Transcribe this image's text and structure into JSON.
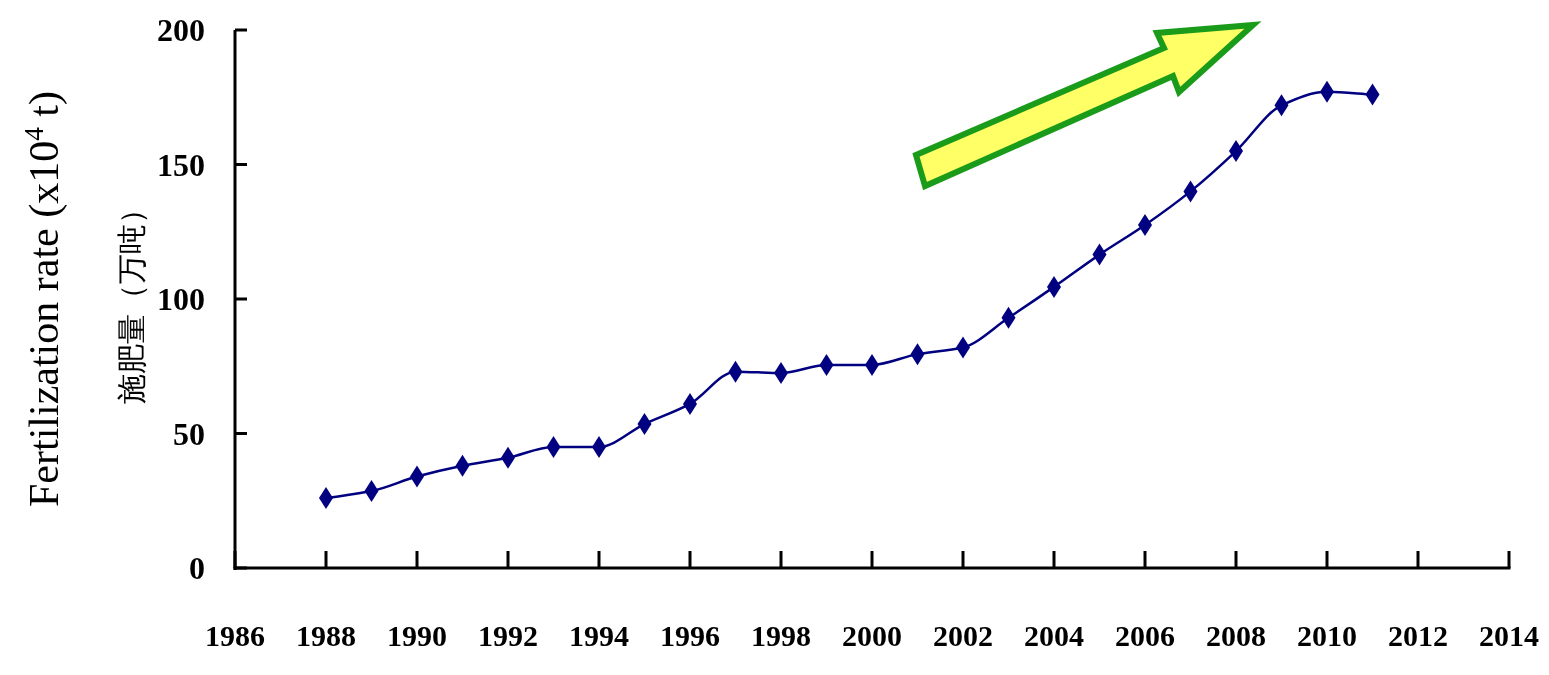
{
  "chart_data": {
    "type": "line",
    "ylabel": "Fertilization rate (x10$^{4}$ t)\n施肥量（万吨）",
    "x": [
      1988,
      1989,
      1990,
      1991,
      1992,
      1993,
      1994,
      1995,
      1996,
      1997,
      1998,
      1999,
      2000,
      2001,
      2002,
      2003,
      2004,
      2005,
      2006,
      2007,
      2008,
      2009,
      2010,
      2011
    ],
    "series": [
      {
        "color": "#000080",
        "values": [
          26,
          28.6,
          34,
          38,
          41,
          45,
          45,
          53.5,
          61,
          73,
          72.5,
          75.5,
          75.5,
          79.5,
          82,
          93,
          104.5,
          116.5,
          127.5,
          140,
          155,
          172,
          177,
          176
        ]
      }
    ],
    "xlim": [
      1986,
      2014
    ],
    "xticks": [
      1986,
      1988,
      1990,
      1992,
      1994,
      1996,
      1998,
      2000,
      2002,
      2004,
      2006,
      2008,
      2010,
      2012,
      2014
    ],
    "ylim": [
      0,
      200
    ],
    "yticks": [
      0,
      50,
      100,
      150,
      200
    ],
    "marker": "diamond",
    "line_style": "solid"
  }
}
